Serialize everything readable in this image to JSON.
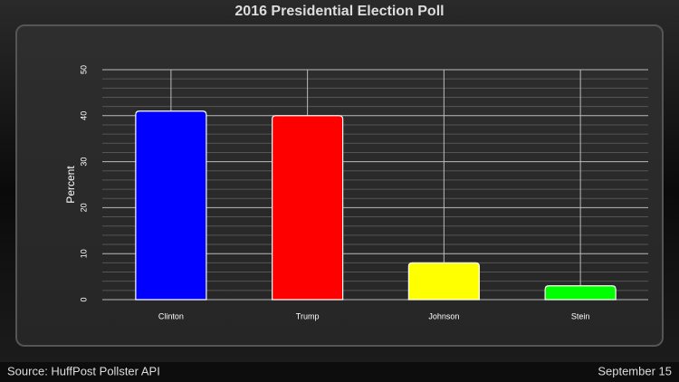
{
  "chart_data": {
    "type": "bar",
    "title": "2016 Presidential Election Poll",
    "y_label": "Percent",
    "categories": [
      "Clinton",
      "Trump",
      "Johnson",
      "Stein"
    ],
    "values": [
      41,
      40,
      8,
      3
    ],
    "colors": [
      "#0000ff",
      "#ff0000",
      "#ffff00",
      "#00ff00"
    ],
    "ylim": [
      0,
      50
    ],
    "yticks": [
      0,
      10,
      20,
      30,
      40,
      50
    ],
    "minor_yticks": [
      2,
      4,
      6,
      8,
      12,
      14,
      16,
      18,
      22,
      24,
      26,
      28,
      32,
      34,
      36,
      38,
      42,
      44,
      46,
      48
    ],
    "grid": true
  },
  "footer": {
    "source": "Source: HuffPost Pollster API",
    "date": "September 15"
  }
}
